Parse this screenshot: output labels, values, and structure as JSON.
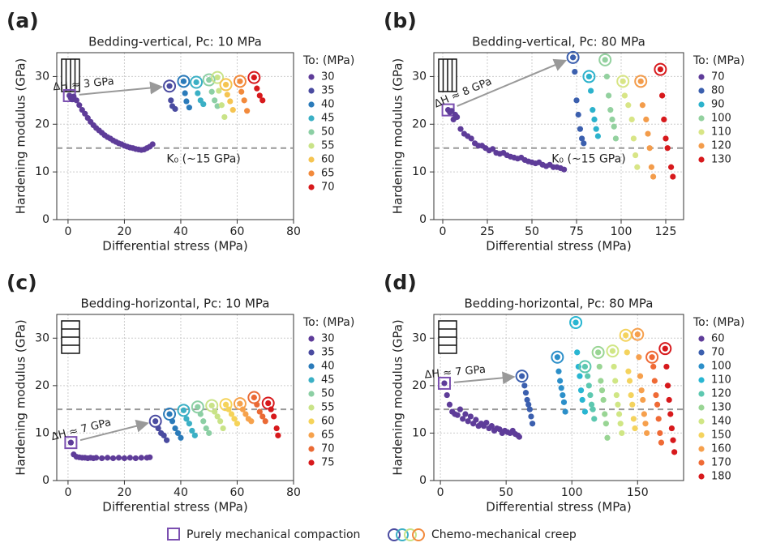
{
  "chart_data": [
    {
      "type": "scatter",
      "panel": "(a)",
      "title": "Bedding-vertical, Pc: 10 MPa",
      "xlabel": "Differential stress (MPa)",
      "ylabel": "Hardening modulus (GPa)",
      "bedding": "vertical",
      "annotation": "ΔH ≈ 3 GPa",
      "reference_line": 15,
      "reference_label": "K₀ (~15 GPa)",
      "legend_title": "To: (MPa)",
      "grid": true,
      "xlim": [
        -4,
        80
      ],
      "ylim": [
        0,
        35
      ],
      "xticks": [
        0,
        20,
        40,
        60,
        80
      ],
      "yticks": [
        0,
        10,
        20,
        30
      ],
      "series": [
        {
          "name": "30",
          "color": "#5e3c99",
          "x": [
            0.5,
            1,
            1.5,
            2,
            3,
            4,
            5,
            6,
            7,
            8,
            9,
            10,
            11,
            12,
            13,
            14,
            15,
            16,
            17,
            18,
            19,
            20,
            21,
            22,
            23,
            24,
            25,
            26,
            27,
            28,
            29,
            30
          ],
          "y": [
            26,
            25.5,
            25.2,
            25.8,
            25,
            24,
            23,
            22.2,
            21.3,
            20.5,
            19.8,
            19.2,
            18.7,
            18.2,
            17.7,
            17.3,
            17,
            16.6,
            16.3,
            16,
            15.8,
            15.5,
            15.3,
            15.1,
            15,
            14.8,
            14.7,
            14.6,
            14.7,
            15,
            15.3,
            15.8
          ]
        },
        {
          "name": "35",
          "color": "#4a4ba0",
          "x": [
            36,
            36.5,
            37,
            38
          ],
          "y": [
            28,
            25,
            23.8,
            23.2
          ]
        },
        {
          "name": "40",
          "color": "#2b7bba",
          "x": [
            41,
            41.5,
            42,
            43
          ],
          "y": [
            29,
            26.5,
            24.8,
            23.5
          ]
        },
        {
          "name": "45",
          "color": "#3bb0c5",
          "x": [
            45.5,
            46,
            47,
            48
          ],
          "y": [
            28.8,
            26.5,
            25,
            24.2
          ]
        },
        {
          "name": "50",
          "color": "#8ccfa4",
          "x": [
            50,
            51,
            52,
            53
          ],
          "y": [
            29.3,
            26.8,
            25,
            23.8
          ]
        },
        {
          "name": "55",
          "color": "#c9e388",
          "x": [
            53,
            53.5,
            54.5,
            55.5
          ],
          "y": [
            29.8,
            27,
            24,
            21.5
          ]
        },
        {
          "name": "60",
          "color": "#f5c451",
          "x": [
            56,
            56.5,
            57.5,
            58.5
          ],
          "y": [
            28.3,
            26.2,
            24.8,
            23
          ]
        },
        {
          "name": "65",
          "color": "#f28a3c",
          "x": [
            61,
            61.5,
            62.5,
            63.5
          ],
          "y": [
            29,
            26.8,
            25,
            22.8
          ]
        },
        {
          "name": "70",
          "color": "#d7191c",
          "x": [
            66,
            67,
            68,
            69
          ],
          "y": [
            29.8,
            27.5,
            26,
            25
          ]
        }
      ]
    },
    {
      "type": "scatter",
      "panel": "(b)",
      "title": "Bedding-vertical, Pc: 80 MPa",
      "xlabel": "Differential stress (MPa)",
      "ylabel": "Hardening modulus (GPa)",
      "bedding": "vertical",
      "annotation": "ΔH ≈ 8 GPa",
      "reference_line": 15,
      "reference_label": "K₀ (~15 GPa)",
      "legend_title": "To: (MPa)",
      "grid": true,
      "xlim": [
        -5,
        135
      ],
      "ylim": [
        0,
        35
      ],
      "xticks": [
        0,
        25,
        50,
        75,
        100,
        125
      ],
      "yticks": [
        0,
        10,
        20,
        30
      ],
      "series": [
        {
          "name": "70",
          "color": "#5e3c99",
          "x": [
            3,
            4,
            5,
            6,
            7,
            8,
            10,
            12,
            14,
            16,
            18,
            20,
            22,
            24,
            26,
            28,
            30,
            32,
            34,
            36,
            38,
            40,
            42,
            44,
            46,
            48,
            50,
            52,
            54,
            56,
            58,
            60,
            62,
            64,
            66,
            68
          ],
          "y": [
            23,
            22.5,
            22.8,
            21,
            22,
            21.5,
            19,
            18,
            17.5,
            17,
            16,
            15.5,
            15.5,
            15,
            14.5,
            14.8,
            14,
            13.8,
            14,
            13.5,
            13.2,
            13,
            12.8,
            13,
            12.5,
            12.2,
            12,
            11.8,
            12,
            11.5,
            11.2,
            11.5,
            11,
            11,
            10.8,
            10.5
          ]
        },
        {
          "name": "80",
          "color": "#3b5fae",
          "x": [
            73,
            74,
            75,
            76,
            77,
            78,
            79
          ],
          "y": [
            34,
            31,
            25,
            22,
            19,
            17,
            16
          ]
        },
        {
          "name": "90",
          "color": "#2cb2cc",
          "x": [
            82,
            83,
            84,
            85,
            86,
            87
          ],
          "y": [
            30,
            27,
            23,
            21,
            19,
            17.5
          ]
        },
        {
          "name": "100",
          "color": "#93d19f",
          "x": [
            91,
            92,
            93,
            94,
            95,
            96,
            97
          ],
          "y": [
            33.5,
            30,
            26,
            23,
            21,
            19.5,
            17
          ]
        },
        {
          "name": "110",
          "color": "#d8e586",
          "x": [
            101,
            102,
            104,
            106,
            107,
            108,
            109
          ],
          "y": [
            29,
            26,
            24,
            21,
            17,
            13.5,
            11
          ]
        },
        {
          "name": "120",
          "color": "#f39c4b",
          "x": [
            111,
            112,
            114,
            115,
            116,
            117,
            118
          ],
          "y": [
            29,
            24,
            21,
            18,
            15,
            11,
            9
          ]
        },
        {
          "name": "130",
          "color": "#d7191c",
          "x": [
            122,
            123,
            124,
            125,
            126,
            128,
            129
          ],
          "y": [
            31.5,
            26,
            21,
            17,
            15,
            11,
            9
          ]
        }
      ]
    },
    {
      "type": "scatter",
      "panel": "(c)",
      "title": "Bedding-horizontal, Pc: 10 MPa",
      "xlabel": "Differential stress (MPa)",
      "ylabel": "Hardening modulus (GPa)",
      "bedding": "horizontal",
      "annotation": "ΔH ≈ 7 GPa",
      "reference_line": 15,
      "legend_title": "To: (MPa)",
      "grid": true,
      "xlim": [
        -4,
        80
      ],
      "ylim": [
        0,
        35
      ],
      "xticks": [
        0,
        20,
        40,
        60,
        80
      ],
      "yticks": [
        0,
        10,
        20,
        30
      ],
      "series": [
        {
          "name": "30",
          "color": "#5e3c99",
          "x": [
            1,
            2,
            3,
            4,
            5,
            6,
            7,
            8,
            9,
            10,
            12,
            14,
            16,
            18,
            20,
            22,
            24,
            26,
            28,
            29
          ],
          "y": [
            8,
            5.5,
            5,
            4.9,
            4.8,
            4.8,
            4.7,
            4.8,
            4.7,
            4.8,
            4.7,
            4.8,
            4.7,
            4.8,
            4.7,
            4.8,
            4.7,
            4.8,
            4.8,
            4.9
          ]
        },
        {
          "name": "35",
          "color": "#4a4ba0",
          "x": [
            31,
            32,
            33,
            34,
            35
          ],
          "y": [
            12.5,
            11,
            10,
            9.5,
            8.5
          ]
        },
        {
          "name": "40",
          "color": "#2b7bba",
          "x": [
            36,
            37,
            38,
            39,
            40
          ],
          "y": [
            14,
            12.5,
            11,
            10,
            9
          ]
        },
        {
          "name": "45",
          "color": "#3bb0c5",
          "x": [
            41,
            42,
            43,
            44,
            45
          ],
          "y": [
            14.8,
            13,
            12,
            10.5,
            9.5
          ]
        },
        {
          "name": "50",
          "color": "#8ccfa4",
          "x": [
            46,
            47,
            48,
            49,
            50
          ],
          "y": [
            15.5,
            14,
            12.5,
            11,
            10
          ]
        },
        {
          "name": "55",
          "color": "#c9e388",
          "x": [
            51,
            52,
            53,
            54,
            55
          ],
          "y": [
            15.8,
            14.5,
            13.5,
            12.5,
            11
          ]
        },
        {
          "name": "60",
          "color": "#f5d35a",
          "x": [
            56,
            57,
            58,
            59,
            60
          ],
          "y": [
            16,
            15,
            14,
            13,
            12
          ]
        },
        {
          "name": "65",
          "color": "#f6a24c",
          "x": [
            61,
            62,
            63,
            64,
            65
          ],
          "y": [
            16.2,
            15,
            14,
            13,
            12.5
          ]
        },
        {
          "name": "70",
          "color": "#ea6a35",
          "x": [
            66,
            67,
            68,
            69,
            70
          ],
          "y": [
            17.5,
            16,
            14.5,
            13.5,
            12.5
          ]
        },
        {
          "name": "75",
          "color": "#d7191c",
          "x": [
            71,
            72,
            73,
            74,
            74.5
          ],
          "y": [
            16.3,
            15,
            13.5,
            11,
            9.5
          ]
        }
      ]
    },
    {
      "type": "scatter",
      "panel": "(d)",
      "title": "Bedding-horizontal, Pc: 80 MPa",
      "xlabel": "Differential stress (MPa)",
      "ylabel": "Hardening modulus (GPa)",
      "bedding": "horizontal",
      "annotation": "ΔH ≈ 7 GPa",
      "reference_line": 15,
      "legend_title": "To: (MPa)",
      "grid": true,
      "xlim": [
        -5,
        185
      ],
      "ylim": [
        0,
        35
      ],
      "xticks": [
        0,
        50,
        100,
        150
      ],
      "yticks": [
        0,
        10,
        20,
        30
      ],
      "series": [
        {
          "name": "60",
          "color": "#5e3c99",
          "x": [
            3,
            5,
            7,
            9,
            11,
            13,
            15,
            17,
            19,
            21,
            23,
            25,
            27,
            29,
            31,
            33,
            35,
            37,
            39,
            41,
            43,
            45,
            47,
            49,
            51,
            53,
            55,
            57,
            59,
            60
          ],
          "y": [
            20.5,
            18,
            16,
            14.5,
            14,
            13.8,
            15,
            13,
            14,
            12.5,
            13.5,
            12,
            12.8,
            11.5,
            12,
            11.5,
            12.2,
            11,
            11.5,
            10.5,
            11,
            10.8,
            10,
            10.5,
            10.2,
            10,
            10.5,
            9.8,
            9.5,
            9.2
          ]
        },
        {
          "name": "70",
          "color": "#3b5fae",
          "x": [
            62,
            64,
            65,
            66,
            67,
            68,
            69,
            70
          ],
          "y": [
            22,
            20,
            18.5,
            17,
            16,
            15,
            13.5,
            12
          ]
        },
        {
          "name": "100",
          "color": "#2c8fc9",
          "x": [
            89,
            90,
            91,
            92,
            93,
            94,
            95
          ],
          "y": [
            26,
            23,
            21,
            19.5,
            18,
            16.5,
            14.5
          ]
        },
        {
          "name": "110",
          "color": "#29b6d2",
          "x": [
            103,
            104,
            105,
            106,
            107,
            108,
            110
          ],
          "y": [
            33.3,
            27,
            24,
            22,
            19,
            17,
            14.5
          ]
        },
        {
          "name": "120",
          "color": "#5dc8b0",
          "x": [
            110,
            112,
            113,
            114,
            115,
            116,
            117
          ],
          "y": [
            24,
            22,
            20,
            18,
            16,
            15,
            13
          ]
        },
        {
          "name": "130",
          "color": "#99d594",
          "x": [
            120,
            121,
            122,
            123,
            124,
            125,
            126,
            127
          ],
          "y": [
            27,
            24,
            21,
            19,
            17,
            14,
            12,
            9
          ]
        },
        {
          "name": "140",
          "color": "#d0e685",
          "x": [
            131,
            132,
            133,
            134,
            135,
            136,
            137,
            138
          ],
          "y": [
            27.3,
            24,
            21,
            18,
            16,
            14,
            12,
            10
          ]
        },
        {
          "name": "150",
          "color": "#f4d35e",
          "x": [
            141,
            142,
            143,
            144,
            145,
            146,
            147,
            148
          ],
          "y": [
            30.6,
            27,
            23,
            21,
            18,
            16,
            13,
            11
          ]
        },
        {
          "name": "160",
          "color": "#f6a04d",
          "x": [
            150,
            151,
            152,
            153,
            154,
            155,
            156,
            157
          ],
          "y": [
            30.8,
            26,
            22,
            19,
            17,
            14,
            12,
            10
          ]
        },
        {
          "name": "170",
          "color": "#ef6a35",
          "x": [
            161,
            162,
            163,
            164,
            165,
            166,
            167,
            168
          ],
          "y": [
            26,
            24,
            21,
            18,
            16,
            13,
            10,
            8
          ]
        },
        {
          "name": "180",
          "color": "#d7191c",
          "x": [
            171,
            172,
            173,
            174,
            175,
            176,
            177,
            178
          ],
          "y": [
            27.8,
            24,
            20,
            17,
            14,
            11,
            8.5,
            6
          ]
        }
      ]
    }
  ],
  "figure_legend": [
    "Purely mechanical compaction",
    "Chemo-mechanical creep"
  ]
}
